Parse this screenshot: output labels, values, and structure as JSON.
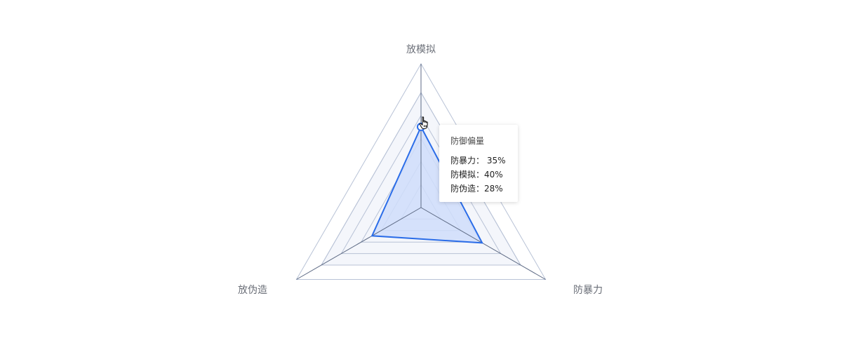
{
  "chart_data": {
    "type": "radar",
    "axes": [
      "放模拟",
      "防暴力",
      "放伪造"
    ],
    "series": [
      {
        "name": "防御偏量",
        "values": [
          40,
          35,
          28
        ]
      }
    ],
    "rmax": 57,
    "rings": 5,
    "colors": {
      "line": "#2b6de8",
      "fill": "#cfddfa",
      "band": "#f4f6fb",
      "grid": "#b8c2d6",
      "spoke": "#5d6a84"
    }
  },
  "tooltip": {
    "title": "防御偏量",
    "rows": [
      "防暴力： 35%",
      "防模拟：40%",
      "防伪造：28%"
    ]
  }
}
